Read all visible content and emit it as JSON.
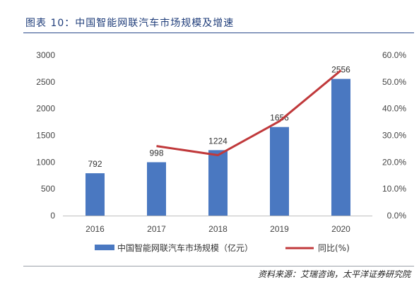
{
  "header": {
    "title": "图表 10：中国智能网联汽车市场规模及增速"
  },
  "footer": {
    "source": "资料来源：艾瑞咨询，太平洋证券研究院"
  },
  "colors": {
    "bar": "#4a78c1",
    "line": "#c0393b",
    "title": "#1f3d7a"
  },
  "chart_data": {
    "type": "bar",
    "categories": [
      "2016",
      "2017",
      "2018",
      "2019",
      "2020"
    ],
    "series": [
      {
        "name": "中国智能网联汽车市场规模（亿元）",
        "type": "bar",
        "axis": "left",
        "values": [
          792,
          998,
          1224,
          1656,
          2556
        ],
        "labels": [
          "792",
          "998",
          "1224",
          "1656",
          "2556"
        ]
      },
      {
        "name": "同比(%)",
        "type": "line",
        "axis": "right",
        "values": [
          null,
          26.0,
          22.6,
          35.3,
          54.3
        ]
      }
    ],
    "ylim": [
      0,
      3000
    ],
    "yticks": [
      "0",
      "500",
      "1000",
      "1500",
      "2000",
      "2500",
      "3000"
    ],
    "y2lim": [
      0,
      60
    ],
    "y2ticks": [
      "0.0%",
      "10.0%",
      "20.0%",
      "30.0%",
      "40.0%",
      "50.0%",
      "60.0%"
    ],
    "legend": "bottom",
    "grid": false
  }
}
